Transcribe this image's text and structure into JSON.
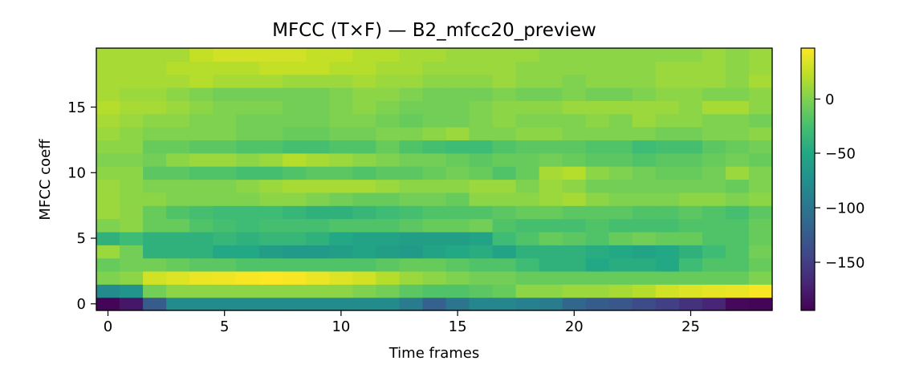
{
  "chart_data": {
    "type": "heatmap",
    "title": "MFCC (T×F) — B2_mfcc20_preview",
    "xlabel": "Time frames",
    "ylabel": "MFCC coeff",
    "x_ticks": [
      "0",
      "5",
      "10",
      "15",
      "20",
      "25"
    ],
    "y_ticks": [
      "0",
      "5",
      "10",
      "15"
    ],
    "colorbar_ticks": [
      "0",
      "−50",
      "−100",
      "−150"
    ],
    "colormap": "viridis",
    "n_frames": 29,
    "n_coeffs": 20,
    "xlim": [
      -0.5,
      28.5
    ],
    "ylim": [
      -0.5,
      19.5
    ],
    "vmin": -195,
    "vmax": 47,
    "grid": false,
    "colorbar_position": "right",
    "values_by_coeff": [
      [
        -192,
        -180,
        -125,
        -80,
        -80,
        -80,
        -80,
        -80,
        -80,
        -80,
        -80,
        -80,
        -80,
        -95,
        -120,
        -100,
        -85,
        -85,
        -90,
        -95,
        -115,
        -125,
        -130,
        -140,
        -150,
        -160,
        -170,
        -190,
        -192
      ],
      [
        -80,
        -70,
        -5,
        5,
        5,
        5,
        5,
        5,
        5,
        5,
        5,
        0,
        -5,
        -15,
        -20,
        -20,
        -15,
        -10,
        5,
        5,
        10,
        10,
        15,
        20,
        30,
        35,
        38,
        40,
        45
      ],
      [
        0,
        5,
        30,
        35,
        40,
        42,
        45,
        47,
        45,
        40,
        35,
        30,
        20,
        10,
        5,
        0,
        -5,
        -5,
        -10,
        -10,
        -10,
        -10,
        -10,
        -10,
        -10,
        -10,
        -10,
        -10,
        0
      ],
      [
        -10,
        -5,
        -5,
        -10,
        -15,
        -15,
        -20,
        -20,
        -20,
        -20,
        -20,
        -20,
        -15,
        -10,
        -10,
        -15,
        -20,
        -20,
        -30,
        -40,
        -40,
        -50,
        -45,
        -45,
        -50,
        -30,
        -20,
        -20,
        -10
      ],
      [
        10,
        -5,
        -40,
        -40,
        -40,
        -50,
        -50,
        -60,
        -65,
        -65,
        -60,
        -55,
        -60,
        -65,
        -55,
        -50,
        -45,
        -55,
        -40,
        -40,
        -40,
        -45,
        -50,
        -55,
        -50,
        -40,
        -30,
        -20,
        -5
      ],
      [
        -40,
        -30,
        -40,
        -40,
        -40,
        -35,
        -40,
        -35,
        -35,
        -40,
        -50,
        -55,
        -55,
        -60,
        -60,
        -60,
        -55,
        -30,
        -20,
        -10,
        -15,
        -20,
        -10,
        -5,
        -10,
        -10,
        -20,
        -20,
        -10
      ],
      [
        0,
        5,
        -10,
        -10,
        -20,
        -25,
        -30,
        -25,
        -25,
        -25,
        -20,
        -20,
        -20,
        -15,
        -10,
        -10,
        -5,
        -20,
        -25,
        -25,
        -25,
        -20,
        -25,
        -25,
        -25,
        -20,
        -20,
        -20,
        -10
      ],
      [
        10,
        5,
        -10,
        -20,
        -25,
        -30,
        -30,
        -30,
        -35,
        -40,
        -40,
        -35,
        -30,
        -25,
        -20,
        -20,
        -20,
        -15,
        -10,
        -10,
        -15,
        -15,
        -15,
        -20,
        -20,
        -15,
        -20,
        -25,
        -15
      ],
      [
        10,
        5,
        5,
        0,
        0,
        0,
        0,
        5,
        5,
        0,
        -5,
        -10,
        -10,
        -5,
        -5,
        -10,
        5,
        5,
        5,
        10,
        15,
        5,
        0,
        0,
        0,
        5,
        5,
        0,
        5
      ],
      [
        10,
        5,
        0,
        0,
        0,
        0,
        5,
        10,
        15,
        15,
        15,
        15,
        10,
        5,
        5,
        5,
        10,
        10,
        0,
        10,
        5,
        -5,
        -5,
        -5,
        -5,
        -5,
        -5,
        -10,
        0
      ],
      [
        5,
        5,
        -15,
        -15,
        -20,
        -20,
        -25,
        -25,
        -20,
        -15,
        -15,
        -20,
        -15,
        -15,
        -10,
        -5,
        -10,
        -20,
        -10,
        15,
        20,
        5,
        0,
        -5,
        -10,
        -10,
        -5,
        10,
        0
      ],
      [
        0,
        0,
        -5,
        5,
        10,
        10,
        5,
        10,
        20,
        15,
        10,
        5,
        0,
        -5,
        -5,
        -10,
        -15,
        -10,
        -10,
        -5,
        -10,
        -15,
        -15,
        -20,
        -15,
        -15,
        -10,
        -5,
        -10
      ],
      [
        5,
        5,
        -10,
        -10,
        -15,
        -15,
        -20,
        -20,
        -25,
        -25,
        -20,
        -20,
        -10,
        -20,
        -25,
        -30,
        -30,
        -20,
        -15,
        -15,
        -15,
        -20,
        -20,
        -30,
        -25,
        -25,
        -15,
        -10,
        -5
      ],
      [
        10,
        5,
        0,
        0,
        0,
        0,
        -5,
        -5,
        -10,
        -10,
        -5,
        -5,
        0,
        0,
        5,
        10,
        0,
        0,
        5,
        5,
        0,
        0,
        0,
        0,
        -5,
        -5,
        0,
        0,
        5
      ],
      [
        15,
        10,
        5,
        5,
        0,
        0,
        -5,
        -5,
        -5,
        -5,
        0,
        0,
        -5,
        -10,
        -5,
        -5,
        0,
        5,
        0,
        0,
        0,
        5,
        0,
        10,
        5,
        5,
        0,
        0,
        -5
      ],
      [
        20,
        15,
        15,
        10,
        5,
        0,
        0,
        0,
        -5,
        -5,
        0,
        5,
        0,
        -5,
        -5,
        -5,
        0,
        5,
        5,
        5,
        10,
        10,
        10,
        10,
        10,
        5,
        15,
        15,
        5
      ],
      [
        15,
        10,
        10,
        5,
        0,
        -5,
        -5,
        -5,
        -5,
        -5,
        0,
        5,
        5,
        0,
        -5,
        -5,
        -5,
        0,
        -5,
        -5,
        0,
        -5,
        -5,
        0,
        5,
        5,
        0,
        0,
        5
      ],
      [
        15,
        15,
        15,
        15,
        20,
        15,
        15,
        15,
        10,
        10,
        10,
        15,
        10,
        10,
        5,
        5,
        5,
        10,
        5,
        5,
        0,
        5,
        5,
        5,
        10,
        10,
        10,
        5,
        15
      ],
      [
        15,
        15,
        15,
        20,
        20,
        20,
        20,
        25,
        25,
        25,
        20,
        20,
        15,
        15,
        10,
        10,
        10,
        10,
        5,
        5,
        5,
        5,
        5,
        5,
        10,
        10,
        10,
        5,
        10
      ],
      [
        15,
        15,
        15,
        15,
        25,
        30,
        30,
        30,
        30,
        25,
        25,
        20,
        20,
        15,
        15,
        10,
        10,
        10,
        10,
        5,
        5,
        5,
        5,
        5,
        5,
        5,
        10,
        5,
        10
      ]
    ]
  }
}
